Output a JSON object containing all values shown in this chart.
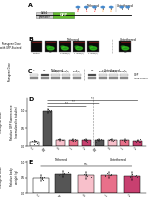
{
  "panel_D": {
    "ylabel": "Relative GFP fluorescence\n(normalized to tubulin)",
    "xlabel_tethered": "Tethered",
    "xlabel_untethered": "Untethered",
    "x_label_left": "Transgene Dose",
    "values": [
      0.13,
      1.0,
      0.18,
      0.17,
      0.17,
      0.18,
      0.18,
      0.17,
      0.16
    ],
    "bar_colors": [
      "#ffffff",
      "#555555",
      "#f8c0cb",
      "#e8708a",
      "#c84070",
      "#555555",
      "#f8c0cb",
      "#e8708a",
      "#c84070"
    ],
    "error": [
      0.02,
      0.06,
      0.03,
      0.03,
      0.03,
      0.02,
      0.03,
      0.03,
      0.02
    ],
    "ylim": [
      0,
      1.35
    ],
    "yticks": [
      0.0,
      0.5,
      1.0
    ],
    "xtick_labels": [
      "C",
      "WT",
      "0",
      "1",
      "2",
      "WT",
      "0",
      "1",
      "2"
    ]
  },
  "panel_E": {
    "ylabel": "Relative body\nweight (g)",
    "xlabel_tethered": "Tethered",
    "x_label_left": "Transgene Dose",
    "values": [
      0.5,
      0.62,
      0.58,
      0.6,
      0.56
    ],
    "bar_colors": [
      "#ffffff",
      "#555555",
      "#f8c0cb",
      "#e8708a",
      "#c84070"
    ],
    "error": [
      0.1,
      0.09,
      0.11,
      0.1,
      0.12
    ],
    "ylim": [
      0,
      1.05
    ],
    "yticks": [
      0.0,
      0.5,
      1.0
    ],
    "xtick_labels": [
      "C",
      "WT",
      "0",
      "1",
      "2"
    ]
  },
  "bg_color": "#ffffff"
}
